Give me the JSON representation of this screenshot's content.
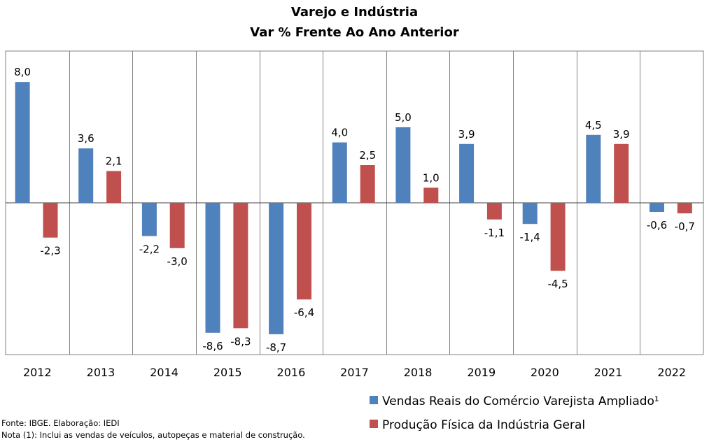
{
  "chart_data": {
    "type": "bar",
    "title": "Varejo e Indústria",
    "subtitle": "Var % Frente Ao Ano Anterior",
    "categories": [
      "2012",
      "2013",
      "2014",
      "2015",
      "2016",
      "2017",
      "2018",
      "2019",
      "2020",
      "2021",
      "2022"
    ],
    "series": [
      {
        "name": "Vendas Reais do Comércio Varejista Ampliado¹",
        "color": "#4f81bd",
        "values": [
          8.0,
          3.6,
          -2.2,
          -8.6,
          -8.7,
          4.0,
          5.0,
          3.9,
          -1.4,
          4.5,
          -0.6
        ],
        "labels": [
          "8,0",
          "3,6",
          "-2,2",
          "-8,6",
          "-8,7",
          "4,0",
          "5,0",
          "3,9",
          "-1,4",
          "4,5",
          "-0,6"
        ]
      },
      {
        "name": "Produção Física da Indústria Geral",
        "color": "#c0504d",
        "values": [
          -2.3,
          2.1,
          -3.0,
          -8.3,
          -6.4,
          2.5,
          1.0,
          -1.1,
          -4.5,
          3.9,
          -0.7
        ],
        "labels": [
          "-2,3",
          "2,1",
          "-3,0",
          "-8,3",
          "-6,4",
          "2,5",
          "1,0",
          "-1,1",
          "-4,5",
          "3,9",
          "-0,7"
        ]
      }
    ],
    "grid": "vertical separators between categories",
    "legend_position": "bottom-right",
    "ylim": [
      -10,
      10
    ]
  },
  "notes": [
    "Fonte: IBGE. Elaboração: IEDI",
    "Nota (1): Inclui as vendas de veículos, autopeças e material de construção."
  ]
}
